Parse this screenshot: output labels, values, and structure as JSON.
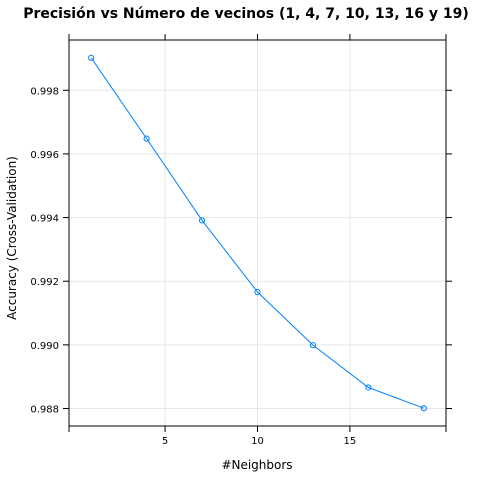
{
  "chart_data": {
    "type": "line",
    "title": "Precisión vs Número de vecinos (1, 4, 7, 10, 13, 16 y 19)",
    "xlabel": "#Neighbors",
    "ylabel": "Accuracy (Cross-Validation)",
    "x": [
      1,
      4,
      7,
      10,
      13,
      16,
      19
    ],
    "series": [
      {
        "values": [
          0.99902,
          0.99648,
          0.99391,
          0.99166,
          0.98999,
          0.98866,
          0.98801
        ]
      }
    ],
    "xlim": [
      -0.2,
      20.2
    ],
    "ylim": [
      0.98745,
      0.99958
    ],
    "xticks": [
      5,
      10,
      15
    ],
    "xtick_labels": [
      "5",
      "10",
      "15"
    ],
    "yticks": [
      0.988,
      0.99,
      0.992,
      0.994,
      0.996,
      0.998
    ],
    "ytick_labels": [
      "0.988",
      "0.990",
      "0.992",
      "0.994",
      "0.996",
      "0.998"
    ],
    "grid": true,
    "legend": "none",
    "colors": {
      "line": "#0080ff",
      "grid": "#e6e6e6",
      "frame": "#000000"
    }
  }
}
